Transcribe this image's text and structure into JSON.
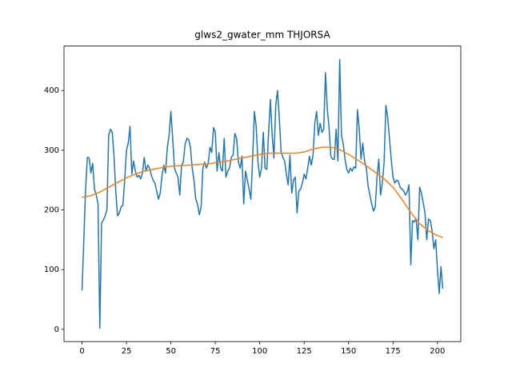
{
  "chart_data": {
    "type": "line",
    "title": "glws2_gwater_mm THJORSA",
    "xlim": [
      -10.15,
      213.15
    ],
    "xticks": [
      0,
      25,
      50,
      75,
      100,
      125,
      150,
      175,
      200
    ],
    "ylim": [
      -20.5,
      474.5
    ],
    "yticks": [
      0,
      100,
      200,
      300,
      400
    ],
    "series": [
      {
        "color": "#1f77b4",
        "x": [
          0,
          1,
          2,
          3,
          4,
          5,
          6,
          7,
          8,
          9,
          10,
          11,
          12,
          13,
          14,
          15,
          16,
          17,
          18,
          19,
          20,
          21,
          22,
          23,
          24,
          25,
          26,
          27,
          28,
          29,
          30,
          31,
          32,
          33,
          34,
          35,
          36,
          37,
          38,
          39,
          40,
          41,
          42,
          43,
          44,
          45,
          46,
          47,
          48,
          49,
          50,
          51,
          52,
          53,
          54,
          55,
          56,
          57,
          58,
          59,
          60,
          61,
          62,
          63,
          64,
          65,
          66,
          67,
          68,
          69,
          70,
          71,
          72,
          73,
          74,
          75,
          76,
          77,
          78,
          79,
          80,
          81,
          82,
          83,
          84,
          85,
          86,
          87,
          88,
          89,
          90,
          91,
          92,
          93,
          94,
          95,
          96,
          97,
          98,
          99,
          100,
          101,
          102,
          103,
          104,
          105,
          106,
          107,
          108,
          109,
          110,
          111,
          112,
          113,
          114,
          115,
          116,
          117,
          118,
          119,
          120,
          121,
          122,
          123,
          124,
          125,
          126,
          127,
          128,
          129,
          130,
          131,
          132,
          133,
          134,
          135,
          136,
          137,
          138,
          139,
          140,
          141,
          142,
          143,
          144,
          145,
          146,
          147,
          148,
          149,
          150,
          151,
          152,
          153,
          154,
          155,
          156,
          157,
          158,
          159,
          160,
          161,
          162,
          163,
          164,
          165,
          166,
          167,
          168,
          169,
          170,
          171,
          172,
          173,
          174,
          175,
          176,
          177,
          178,
          179,
          180,
          181,
          182,
          183,
          184,
          185,
          186,
          187,
          188,
          189,
          190,
          191,
          192,
          193,
          194,
          195,
          196,
          197,
          198,
          199,
          200,
          201,
          202,
          203
        ],
        "values": [
          65,
          150,
          235,
          288,
          287,
          262,
          278,
          235,
          225,
          210,
          2,
          178,
          183,
          190,
          200,
          325,
          335,
          330,
          290,
          230,
          190,
          195,
          205,
          208,
          250,
          300,
          312,
          340,
          260,
          282,
          265,
          255,
          258,
          252,
          262,
          288,
          265,
          275,
          270,
          258,
          250,
          245,
          232,
          218,
          228,
          258,
          275,
          262,
          305,
          325,
          365,
          320,
          270,
          262,
          255,
          225,
          275,
          280,
          310,
          320,
          318,
          305,
          270,
          250,
          218,
          210,
          192,
          205,
          270,
          280,
          270,
          278,
          305,
          296,
          338,
          330,
          265,
          296,
          270,
          265,
          320,
          255,
          265,
          270,
          288,
          292,
          328,
          320,
          280,
          270,
          290,
          210,
          265,
          250,
          235,
          218,
          285,
          365,
          340,
          280,
          255,
          270,
          330,
          270,
          268,
          330,
          385,
          325,
          287,
          375,
          400,
          355,
          298,
          288,
          282,
          260,
          242,
          292,
          228,
          250,
          255,
          195,
          232,
          235,
          245,
          260,
          252,
          270,
          290,
          275,
          292,
          345,
          365,
          325,
          345,
          330,
          335,
          430,
          370,
          338,
          290,
          285,
          285,
          335,
          282,
          452,
          325,
          310,
          285,
          268,
          262,
          270,
          265,
          272,
          270,
          368,
          335,
          285,
          312,
          282,
          270,
          240,
          225,
          210,
          198,
          205,
          255,
          285,
          225,
          245,
          280,
          375,
          355,
          320,
          285,
          255,
          245,
          250,
          248,
          238,
          235,
          232,
          225,
          230,
          242,
          108,
          182,
          180,
          185,
          150,
          238,
          228,
          212,
          195,
          150,
          185,
          182,
          165,
          135,
          150,
          100,
          60,
          105,
          68
        ]
      },
      {
        "color": "#ff7f0e",
        "x": [
          0,
          5,
          10,
          15,
          20,
          25,
          30,
          35,
          40,
          45,
          50,
          55,
          60,
          65,
          70,
          75,
          80,
          85,
          90,
          95,
          100,
          105,
          110,
          115,
          120,
          125,
          130,
          135,
          140,
          145,
          150,
          155,
          160,
          165,
          170,
          175,
          180,
          185,
          190,
          195,
          200,
          203
        ],
        "values": [
          221,
          224,
          230,
          238,
          246,
          254,
          260,
          265,
          268,
          271,
          273,
          274,
          275,
          276,
          277,
          279,
          281,
          284,
          287,
          290,
          293,
          295,
          295,
          295,
          295,
          297,
          302,
          305,
          305,
          301,
          293,
          284,
          274,
          263,
          252,
          238,
          218,
          196,
          177,
          165,
          157,
          154
        ]
      }
    ]
  }
}
